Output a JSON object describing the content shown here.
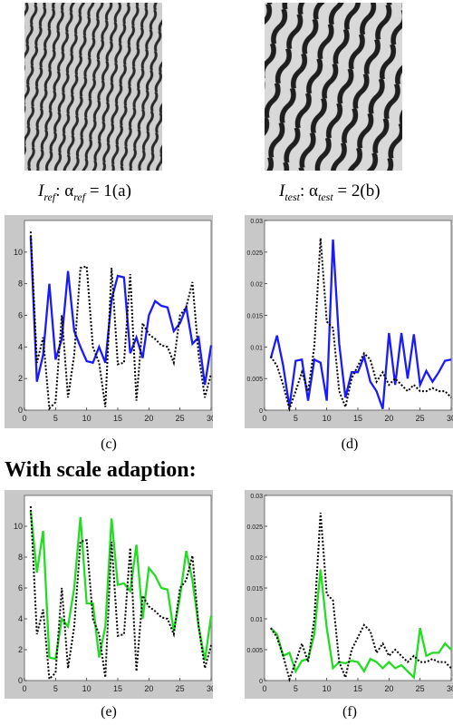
{
  "textures": {
    "a": {
      "caption_math": "I",
      "caption_sub1": "ref",
      "caption_sep": ": α",
      "caption_sub2": "ref",
      "caption_eq": " = 1",
      "caption_tag": "(a)"
    },
    "b": {
      "caption_math": "I",
      "caption_sub1": "test",
      "caption_sep": ": α",
      "caption_sub2": "test",
      "caption_eq": " = 2",
      "caption_tag": "(b)"
    }
  },
  "section_heading": "With scale adaption:",
  "colors": {
    "blue": "#1a1aff",
    "green": "#22dd22",
    "dotted": "#000000",
    "panel_bg": "#c8c8c8"
  },
  "chart_data": [
    {
      "id": "c",
      "label": "(c)",
      "type": "line",
      "xlim": [
        0,
        30
      ],
      "ylim": [
        0,
        12
      ],
      "xticks": [
        0,
        5,
        10,
        15,
        20,
        25,
        30
      ],
      "yticks": [
        0,
        2,
        4,
        6,
        8,
        10
      ],
      "series": [
        {
          "style": "solid",
          "color": "blue",
          "x": [
            1,
            2,
            3,
            4,
            5,
            6,
            7,
            8,
            9,
            10,
            11,
            12,
            13,
            14,
            15,
            16,
            17,
            18,
            19,
            20,
            21,
            22,
            23,
            24,
            25,
            26,
            27,
            28,
            29,
            30
          ],
          "values": [
            11,
            1.8,
            3.5,
            8,
            3.2,
            4.5,
            8.8,
            5,
            4,
            3.1,
            3,
            4,
            3,
            7,
            8.5,
            8.4,
            3.6,
            4.6,
            3.3,
            6,
            6.9,
            6.6,
            6.5,
            5,
            5.5,
            6.5,
            4.2,
            4.6,
            1.6,
            4.1
          ]
        },
        {
          "style": "dotted",
          "color": "dotted",
          "x": [
            1,
            2,
            3,
            4,
            5,
            6,
            7,
            8,
            9,
            10,
            11,
            12,
            13,
            14,
            15,
            16,
            17,
            18,
            19,
            20,
            21,
            22,
            23,
            24,
            25,
            26,
            27,
            28,
            29,
            30
          ],
          "values": [
            11.3,
            3,
            4.6,
            0.1,
            0.5,
            6,
            0.8,
            3.5,
            9,
            9.1,
            4,
            3,
            0.2,
            9,
            2.9,
            3,
            8.6,
            0.6,
            5.5,
            4.8,
            4.5,
            4.1,
            4,
            3,
            6,
            6.5,
            8.1,
            3.5,
            0.8,
            2.3
          ]
        }
      ]
    },
    {
      "id": "d",
      "label": "(d)",
      "type": "line",
      "xlim": [
        0,
        30
      ],
      "ylim": [
        0,
        0.03
      ],
      "xticks": [
        0,
        5,
        10,
        15,
        20,
        25,
        30
      ],
      "yticks": [
        0,
        0.005,
        0.01,
        0.015,
        0.02,
        0.025,
        0.03
      ],
      "ytick_labels": [
        "0",
        "0.005",
        "0.01",
        "0.015",
        "0.02",
        "0.025",
        "0.03"
      ],
      "series": [
        {
          "style": "solid",
          "color": "blue",
          "x": [
            1,
            2,
            3,
            4,
            5,
            6,
            7,
            8,
            9,
            10,
            11,
            12,
            13,
            14,
            15,
            16,
            17,
            18,
            19,
            20,
            21,
            22,
            23,
            24,
            25,
            26,
            27,
            28,
            29,
            30
          ],
          "values": [
            0.0082,
            0.0118,
            0.007,
            0.0005,
            0.0078,
            0.008,
            0.0015,
            0.008,
            0.0075,
            0.0015,
            0.027,
            0.0105,
            0.002,
            0.006,
            0.006,
            0.0085,
            0.0045,
            0.003,
            0.0002,
            0.0122,
            0.004,
            0.0122,
            0.005,
            0.012,
            0.004,
            0.0062,
            0.0045,
            0.006,
            0.0078,
            0.008
          ]
        },
        {
          "style": "dotted",
          "color": "dotted",
          "x": [
            1,
            2,
            3,
            4,
            5,
            6,
            7,
            8,
            9,
            10,
            11,
            12,
            13,
            14,
            15,
            16,
            17,
            18,
            19,
            20,
            21,
            22,
            23,
            24,
            25,
            26,
            27,
            28,
            29,
            30
          ],
          "values": [
            0.0085,
            0.007,
            0.004,
            0.0002,
            0.003,
            0.006,
            0.003,
            0.01,
            0.0272,
            0.014,
            0.013,
            0.003,
            0.0005,
            0.005,
            0.007,
            0.009,
            0.008,
            0.0045,
            0.006,
            0.004,
            0.005,
            0.004,
            0.003,
            0.004,
            0.003,
            0.003,
            0.0035,
            0.003,
            0.003,
            0.002
          ]
        }
      ]
    },
    {
      "id": "e",
      "label": "(e)",
      "type": "line",
      "xlim": [
        0,
        30
      ],
      "ylim": [
        0,
        12
      ],
      "xticks": [
        0,
        5,
        10,
        15,
        20,
        25,
        30
      ],
      "yticks": [
        0,
        2,
        4,
        6,
        8,
        10
      ],
      "series": [
        {
          "style": "solid",
          "color": "green",
          "x": [
            1,
            2,
            3,
            4,
            5,
            6,
            7,
            8,
            9,
            10,
            11,
            12,
            13,
            14,
            15,
            16,
            17,
            18,
            19,
            20,
            21,
            22,
            23,
            24,
            25,
            26,
            27,
            28,
            29,
            30
          ],
          "values": [
            11,
            7,
            9.7,
            1.5,
            1.4,
            4,
            3.5,
            6,
            10.6,
            5,
            5,
            1.5,
            3.5,
            10.5,
            6.2,
            6.3,
            5.8,
            8.8,
            4,
            7.3,
            6.8,
            6,
            5.9,
            3.2,
            5.4,
            8.4,
            6.5,
            3.5,
            1.3,
            4.2
          ]
        },
        {
          "style": "dotted",
          "color": "dotted",
          "x": [
            1,
            2,
            3,
            4,
            5,
            6,
            7,
            8,
            9,
            10,
            11,
            12,
            13,
            14,
            15,
            16,
            17,
            18,
            19,
            20,
            21,
            22,
            23,
            24,
            25,
            26,
            27,
            28,
            29,
            30
          ],
          "values": [
            11.3,
            3,
            4.6,
            0.1,
            0.5,
            6,
            0.8,
            3.5,
            9,
            9.1,
            4,
            3,
            0.2,
            9,
            2.9,
            3,
            8.6,
            0.6,
            5.5,
            4.8,
            4.5,
            4.1,
            4,
            3,
            6,
            6.5,
            8.1,
            3.5,
            0.8,
            2.3
          ]
        }
      ]
    },
    {
      "id": "f",
      "label": "(f)",
      "type": "line",
      "xlim": [
        0,
        30
      ],
      "ylim": [
        0,
        0.03
      ],
      "xticks": [
        0,
        5,
        10,
        15,
        20,
        25,
        30
      ],
      "yticks": [
        0,
        0.005,
        0.01,
        0.015,
        0.02,
        0.025,
        0.03
      ],
      "ytick_labels": [
        "0",
        "0.005",
        "0.01",
        "0.015",
        "0.02",
        "0.025",
        "0.03"
      ],
      "series": [
        {
          "style": "solid",
          "color": "green",
          "x": [
            1,
            2,
            3,
            4,
            5,
            6,
            7,
            8,
            9,
            10,
            11,
            12,
            13,
            14,
            15,
            16,
            17,
            18,
            19,
            20,
            21,
            22,
            23,
            24,
            25,
            26,
            27,
            28,
            29,
            30
          ],
          "values": [
            0.0085,
            0.0075,
            0.004,
            0.0045,
            0.0015,
            0.0032,
            0.0035,
            0.0075,
            0.018,
            0.0085,
            0.002,
            0.003,
            0.0028,
            0.0032,
            0.003,
            0.0015,
            0.0035,
            0.003,
            0.002,
            0.003,
            0.002,
            0.0025,
            0.0015,
            0.0005,
            0.0085,
            0.004,
            0.0045,
            0.0045,
            0.006,
            0.005
          ]
        },
        {
          "style": "dotted",
          "color": "dotted",
          "x": [
            1,
            2,
            3,
            4,
            5,
            6,
            7,
            8,
            9,
            10,
            11,
            12,
            13,
            14,
            15,
            16,
            17,
            18,
            19,
            20,
            21,
            22,
            23,
            24,
            25,
            26,
            27,
            28,
            29,
            30
          ],
          "values": [
            0.0085,
            0.007,
            0.004,
            0.0002,
            0.003,
            0.006,
            0.003,
            0.01,
            0.0272,
            0.014,
            0.013,
            0.003,
            0.0005,
            0.005,
            0.007,
            0.009,
            0.008,
            0.0045,
            0.006,
            0.004,
            0.005,
            0.004,
            0.003,
            0.004,
            0.003,
            0.003,
            0.0035,
            0.003,
            0.003,
            0.002
          ]
        }
      ]
    }
  ]
}
